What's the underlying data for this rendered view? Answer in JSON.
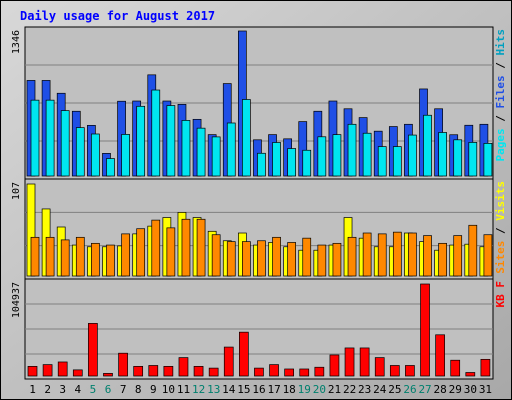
{
  "chart_data": {
    "type": "bar",
    "title": "Daily usage for August 2017",
    "categories": [
      "1",
      "2",
      "3",
      "4",
      "5",
      "6",
      "7",
      "8",
      "9",
      "10",
      "11",
      "12",
      "13",
      "14",
      "15",
      "16",
      "17",
      "18",
      "19",
      "20",
      "21",
      "22",
      "23",
      "24",
      "25",
      "26",
      "27",
      "28",
      "29",
      "30",
      "31"
    ],
    "weekend_days": [
      "5",
      "6",
      "12",
      "13",
      "19",
      "20",
      "26",
      "27"
    ],
    "panels": [
      {
        "id": "top",
        "max_label": "1346",
        "ylim": [
          0,
          1346
        ],
        "series": [
          {
            "name": "Hits",
            "color": "#00a0c0",
            "role": "legend-only",
            "values": []
          },
          {
            "name": "Files",
            "color": "#1f4fe6",
            "values": [
              887,
              887,
              768,
              601,
              470,
              210,
              694,
              696,
              939,
              696,
              665,
              526,
              384,
              858,
              1346,
              336,
              384,
              345,
              505,
              601,
              696,
              624,
              542,
              416,
              459,
              480,
              808,
              624,
              383,
              471,
              480
            ]
          },
          {
            "name": "Pages",
            "color": "#00e6f0",
            "values": [
              704,
              704,
              607,
              449,
              390,
              162,
              386,
              647,
              798,
              654,
              516,
              444,
              363,
              492,
              710,
              211,
              311,
              255,
              239,
              364,
              384,
              480,
              397,
              273,
              273,
              380,
              564,
              404,
              336,
              312,
              303
            ]
          }
        ]
      },
      {
        "id": "middle",
        "max_label": "107",
        "ylim": [
          0,
          107
        ],
        "series": [
          {
            "name": "Visits",
            "color": "#ffff00",
            "values": [
              107,
              78,
              57,
              36,
              34,
              34,
              35,
              49,
              58,
              68,
              74,
              68,
              52,
              41,
              50,
              36,
              39,
              34,
              30,
              30,
              36,
              68,
              44,
              34,
              34,
              50,
              40,
              30,
              36,
              37,
              34
            ]
          },
          {
            "name": "Sites",
            "color": "#ff8800",
            "values": [
              45,
              45,
              42,
              45,
              38,
              36,
              49,
              55,
              65,
              56,
              66,
              66,
              48,
              40,
              40,
              41,
              45,
              39,
              44,
              36,
              38,
              45,
              50,
              49,
              51,
              50,
              47,
              38,
              47,
              59,
              48
            ]
          }
        ]
      },
      {
        "id": "bottom",
        "max_label": "104937",
        "ylim": [
          0,
          104937
        ],
        "series": [
          {
            "name": "KB F",
            "color": "#ff0000",
            "values": [
              11000,
              13000,
              16000,
              7000,
              60000,
              3000,
              26000,
              11000,
              12000,
              11000,
              21000,
              11000,
              9000,
              33000,
              50000,
              9000,
              13000,
              8000,
              8000,
              10000,
              24000,
              32000,
              32000,
              21000,
              12000,
              12000,
              104937,
              47000,
              18000,
              4000,
              19000
            ]
          }
        ]
      }
    ]
  },
  "colors": {
    "background": "#c0c0c0",
    "panel": "#c0c0c0",
    "title": "#0000ff",
    "label": "#000000",
    "weekend_label": "#00806e",
    "grid": "#808080",
    "bar_outline": "#000000"
  }
}
